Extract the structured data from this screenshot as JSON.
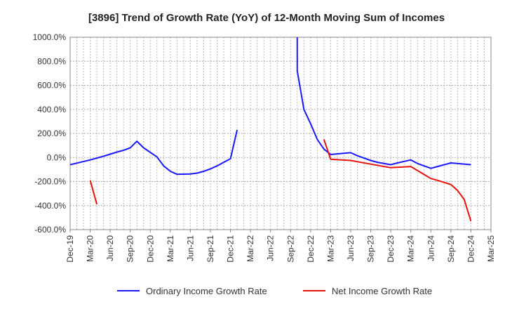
{
  "chart_data": {
    "type": "line",
    "title": "[3896]  Trend of Growth Rate (YoY) of 12-Month Moving Sum of Incomes",
    "xlabel": "",
    "ylabel": "",
    "ylim": [
      -600,
      1000
    ],
    "y_ticks": [
      1000,
      800,
      600,
      400,
      200,
      0,
      -200,
      -400,
      -600
    ],
    "y_tick_labels": [
      "1000.0%",
      "800.0%",
      "600.0%",
      "400.0%",
      "200.0%",
      "0.0%",
      "-200.0%",
      "-400.0%",
      "-600.0%"
    ],
    "x_ticks": [
      "Dec-19",
      "Mar-20",
      "Jun-20",
      "Sep-20",
      "Dec-20",
      "Mar-21",
      "Jun-21",
      "Sep-21",
      "Dec-21",
      "Mar-22",
      "Jun-22",
      "Sep-22",
      "Dec-22",
      "Mar-23",
      "Jun-23",
      "Sep-23",
      "Dec-23",
      "Mar-24",
      "Jun-24",
      "Sep-24",
      "Dec-24",
      "Mar-25"
    ],
    "x_range": [
      "2019-12",
      "2025-03"
    ],
    "grid": true,
    "legend_position": "bottom",
    "series": [
      {
        "name": "Ordinary Income Growth Rate",
        "color": "#1a1aff",
        "points": [
          [
            "2019-12",
            -60
          ],
          [
            "2020-03",
            -20
          ],
          [
            "2020-05",
            10
          ],
          [
            "2020-07",
            45
          ],
          [
            "2020-08",
            60
          ],
          [
            "2020-09",
            80
          ],
          [
            "2020-10",
            135
          ],
          [
            "2020-11",
            80
          ],
          [
            "2021-01",
            5
          ],
          [
            "2021-02",
            -70
          ],
          [
            "2021-03",
            -115
          ],
          [
            "2021-04",
            -140
          ],
          [
            "2021-06",
            -137
          ],
          [
            "2021-07",
            -130
          ],
          [
            "2021-08",
            -115
          ],
          [
            "2021-09",
            -95
          ],
          [
            "2021-10",
            -70
          ],
          [
            "2021-11",
            -40
          ],
          [
            "2021-12",
            -10
          ],
          [
            "2022-01",
            230
          ],
          [
            "2022-10",
            1200
          ],
          [
            "2022-10",
            720
          ],
          [
            "2022-11",
            400
          ],
          [
            "2022-12",
            280
          ],
          [
            "2023-01",
            150
          ],
          [
            "2023-02",
            70
          ],
          [
            "2023-03",
            25
          ],
          [
            "2023-06",
            40
          ],
          [
            "2023-07",
            15
          ],
          [
            "2023-09",
            -25
          ],
          [
            "2023-10",
            -40
          ],
          [
            "2023-12",
            -60
          ],
          [
            "2024-01",
            -45
          ],
          [
            "2024-03",
            -20
          ],
          [
            "2024-04",
            -50
          ],
          [
            "2024-06",
            -90
          ],
          [
            "2024-07",
            -75
          ],
          [
            "2024-09",
            -45
          ],
          [
            "2024-12",
            -60
          ]
        ]
      },
      {
        "name": "Net Income Growth Rate",
        "color": "#e8120c",
        "points": [
          [
            "2020-03",
            -190
          ],
          [
            "2020-04",
            -390
          ],
          [
            "2023-02",
            150
          ],
          [
            "2023-03",
            -15
          ],
          [
            "2023-06",
            -25
          ],
          [
            "2023-09",
            -55
          ],
          [
            "2023-12",
            -85
          ],
          [
            "2024-03",
            -75
          ],
          [
            "2024-06",
            -175
          ],
          [
            "2024-07",
            -190
          ],
          [
            "2024-09",
            -225
          ],
          [
            "2024-10",
            -275
          ],
          [
            "2024-11",
            -350
          ],
          [
            "2024-12",
            -530
          ]
        ],
        "segments": [
          [
            0,
            1
          ],
          [
            2,
            13
          ]
        ]
      }
    ]
  }
}
